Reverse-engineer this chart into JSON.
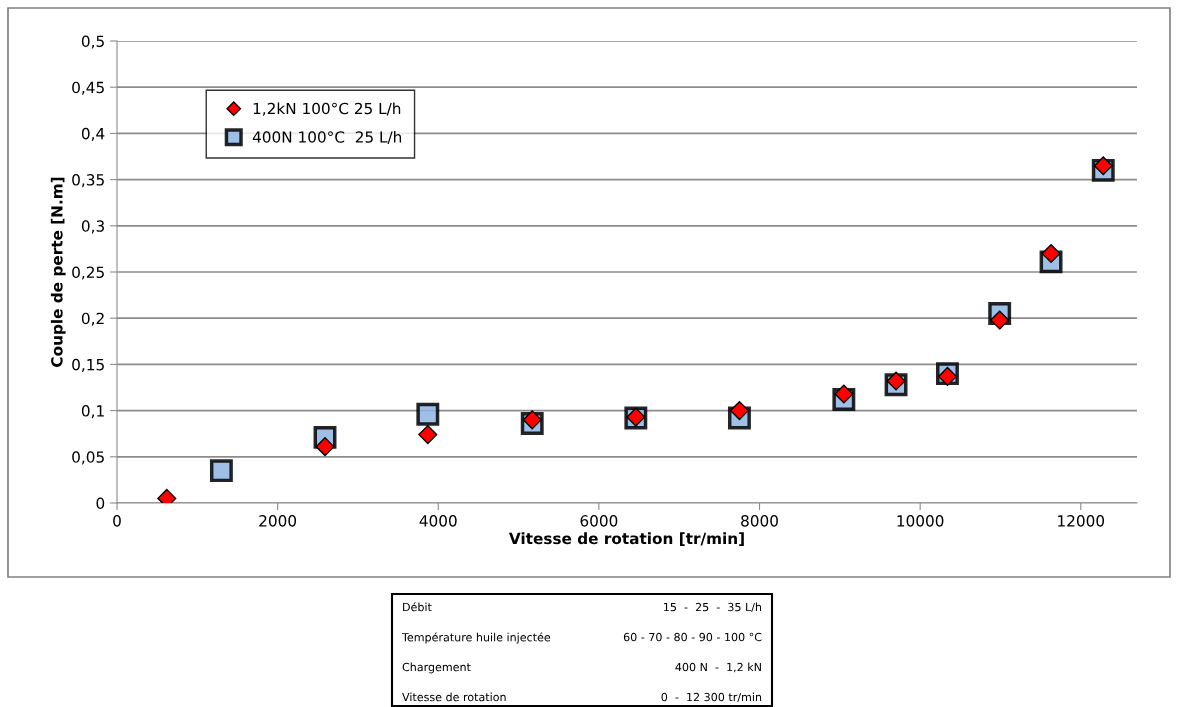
{
  "chart_data": {
    "type": "scatter",
    "xlabel": "Vitesse de rotation [tr/min]",
    "ylabel": "Couple de perte [N.m]",
    "xlim": [
      0,
      12700
    ],
    "xticks": [
      0,
      2000,
      4000,
      6000,
      8000,
      10000,
      12000
    ],
    "ylim": [
      0,
      0.5
    ],
    "yticks": [
      {
        "value": 0,
        "label": "0"
      },
      {
        "value": 0.05,
        "label": "0,05"
      },
      {
        "value": 0.1,
        "label": "0,1"
      },
      {
        "value": 0.15,
        "label": "0,15"
      },
      {
        "value": 0.2,
        "label": "0,2"
      },
      {
        "value": 0.25,
        "label": "0,25"
      },
      {
        "value": 0.3,
        "label": "0,3"
      },
      {
        "value": 0.35,
        "label": "0,35"
      },
      {
        "value": 0.4,
        "label": "0,4"
      },
      {
        "value": 0.45,
        "label": "0,45"
      },
      {
        "value": 0.5,
        "label": "0,5"
      }
    ],
    "grid": "y",
    "legend": "top left",
    "series": [
      {
        "name": "1,2kN 100°C 25 L/h",
        "color": "#ff0000",
        "marker": "diamond",
        "x": [
          620,
          2590,
          3870,
          5170,
          6460,
          7750,
          9050,
          9700,
          10340,
          10990,
          11630,
          12280
        ],
        "values": [
          0.005,
          0.061,
          0.074,
          0.09,
          0.093,
          0.1,
          0.118,
          0.132,
          0.137,
          0.198,
          0.27,
          0.365
        ]
      },
      {
        "name": "400N 100°C  25 L/h",
        "color": "#8eb4e3",
        "marker": "square",
        "x": [
          1300,
          2590,
          3870,
          5170,
          6460,
          7750,
          9050,
          9700,
          10340,
          10990,
          11630,
          12280
        ],
        "values": [
          0.035,
          0.071,
          0.096,
          0.086,
          0.092,
          0.092,
          0.112,
          0.128,
          0.14,
          0.205,
          0.261,
          0.36
        ]
      }
    ],
    "annotations": [
      "Débit",
      "15  -  25  -  35 L/h",
      "Température huile injectée",
      "60 - 70 - 80 - 90 - 100 °C",
      "Chargement",
      "400 N  -  1,2 kN",
      "Vitesse de rotation",
      "0  -  12 300 tr/min"
    ]
  }
}
